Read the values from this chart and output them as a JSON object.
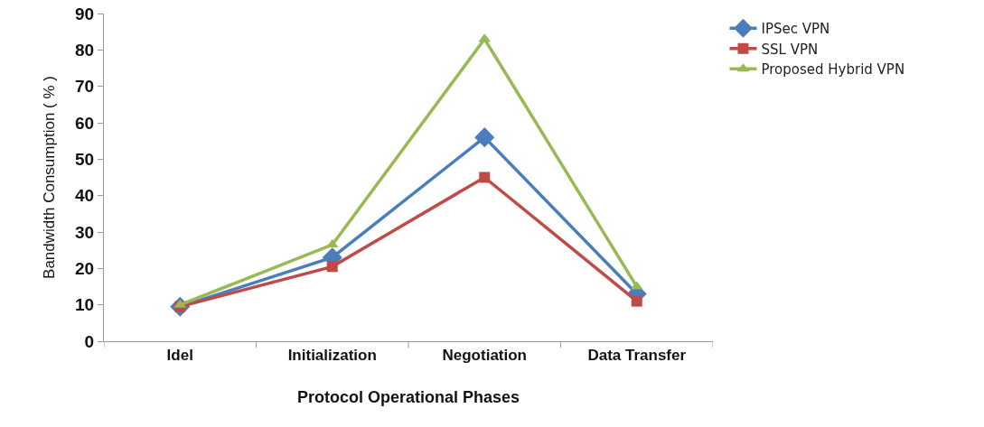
{
  "chart_data": {
    "type": "line",
    "xlabel": "Protocol Operational Phases",
    "ylabel": "Bandwidth Consumption ( % )",
    "categories": [
      "Idel",
      "Initialization",
      "Negotiation",
      "Data Transfer"
    ],
    "series": [
      {
        "name": "IPSec VPN",
        "color": "#4a7ebb",
        "marker": "diamond",
        "values": [
          9.5,
          23,
          56,
          13
        ]
      },
      {
        "name": "SSL VPN",
        "color": "#be4b48",
        "marker": "square",
        "values": [
          9.5,
          20.5,
          45,
          11
        ]
      },
      {
        "name": "Proposed Hybrid VPN",
        "color": "#98b954",
        "marker": "triangle",
        "values": [
          10,
          26.5,
          83,
          15
        ]
      }
    ],
    "ylim": [
      0,
      90
    ],
    "yticks": [
      0,
      10,
      20,
      30,
      40,
      50,
      60,
      70,
      80,
      90
    ],
    "grid": false,
    "legend": "top right",
    "line_style": "solid"
  }
}
